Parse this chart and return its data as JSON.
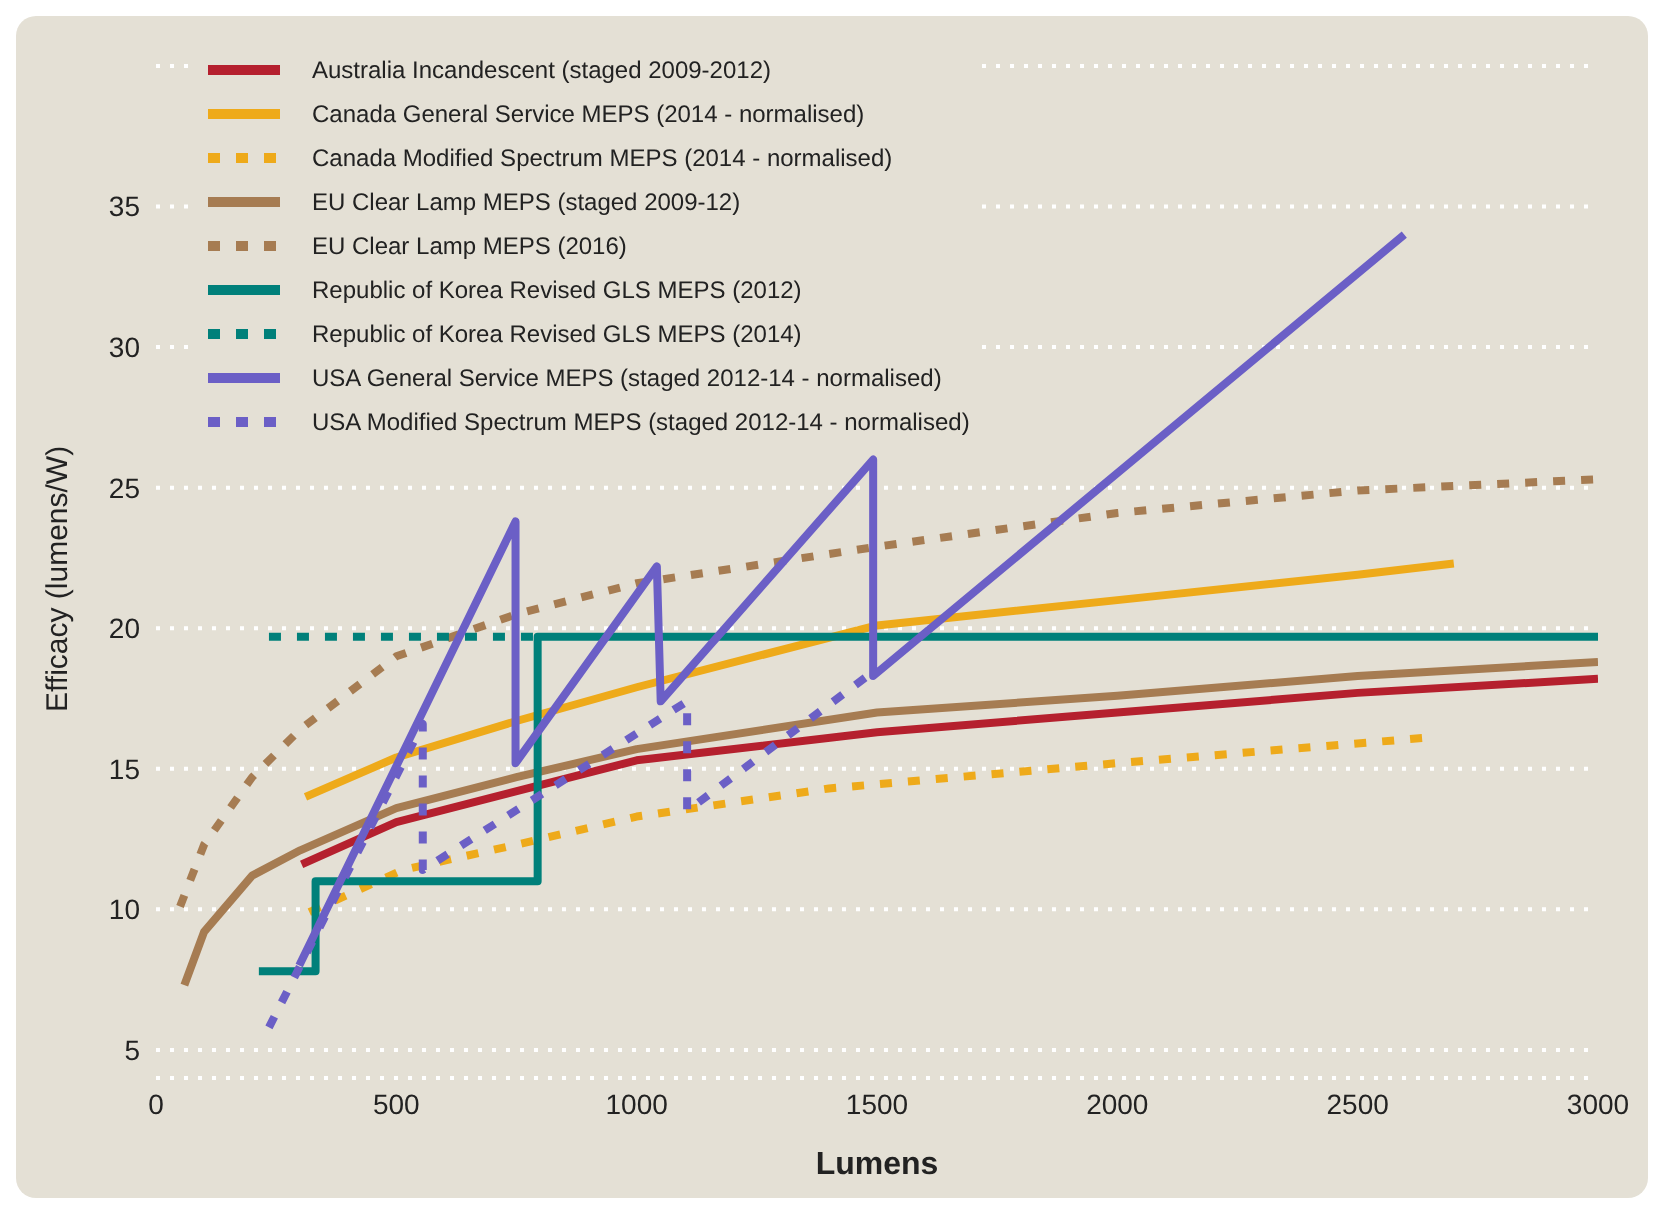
{
  "chart_data": {
    "type": "line",
    "xlabel": "Lumens",
    "ylabel": "Efficacy (lumens/W)",
    "xlim": [
      0,
      3000
    ],
    "xticks": [
      0,
      500,
      1000,
      1500,
      2000,
      2500,
      3000
    ],
    "ylim": [
      4,
      40
    ],
    "yticks": [
      5,
      10,
      15,
      20,
      25,
      30,
      35
    ],
    "grid": "y",
    "legend": "top left",
    "line_style": "solid",
    "series": [
      {
        "name": "Australia Incandescent (staged 2009-2012)",
        "color": "#b5202e",
        "x": [
          303,
          500,
          1000,
          1500,
          2000,
          2500,
          3000
        ],
        "values": [
          11.6,
          13.1,
          15.3,
          16.3,
          17.0,
          17.7,
          18.2
        ]
      },
      {
        "name": "Canada General Service MEPS (2014 - normalised)",
        "color": "#eeaa1a",
        "x": [
          311,
          500,
          750,
          1000,
          1500,
          2000,
          2500,
          2700
        ],
        "values": [
          14.0,
          15.4,
          16.7,
          17.9,
          20.1,
          21.0,
          21.9,
          22.3
        ]
      },
      {
        "name": "Canada Modified Spectrum MEPS (2014 - normalised)",
        "color": "#eeaa1a",
        "line_style": "dashed",
        "x": [
          319,
          513,
          750,
          1000,
          1400,
          2000,
          2640
        ],
        "values": [
          9.9,
          11.4,
          12.3,
          13.3,
          14.3,
          15.2,
          16.1
        ]
      },
      {
        "name": "EU Clear Lamp MEPS (staged 2009-12)",
        "color": "#a67c52",
        "x": [
          59,
          100,
          200,
          300,
          500,
          750,
          1000,
          1500,
          2000,
          2500,
          3000
        ],
        "values": [
          7.3,
          9.2,
          11.2,
          12.1,
          13.6,
          14.7,
          15.7,
          17.0,
          17.6,
          18.3,
          18.8
        ]
      },
      {
        "name": "EU Clear Lamp MEPS (2016)",
        "color": "#a67c52",
        "line_style": "dashed",
        "x": [
          50,
          100,
          200,
          300,
          500,
          750,
          1000,
          1500,
          2000,
          2500,
          3000
        ],
        "values": [
          10.1,
          12.3,
          14.7,
          16.4,
          19.0,
          20.5,
          21.6,
          22.9,
          24.1,
          24.9,
          25.3
        ]
      },
      {
        "name": "Republic of Korea Revised GLS MEPS (2012)",
        "color": "#00807a",
        "type": "step",
        "x": [
          214,
          332,
          794,
          3000
        ],
        "values": [
          7.8,
          11.0,
          19.7,
          19.7
        ]
      },
      {
        "name": "Republic of Korea Revised GLS MEPS (2014)",
        "color": "#00807a",
        "type": "step",
        "line_style": "dashed",
        "x": [
          235,
          794
        ],
        "values": [
          19.7,
          19.7
        ]
      },
      {
        "name": "USA General Service MEPS (staged 2012-14 - normalised)",
        "color": "#6b5fc6",
        "x": [
          298,
          748,
          748,
          1042,
          1050,
          1492,
          1492,
          2597
        ],
        "values": [
          8.0,
          23.8,
          15.2,
          22.2,
          17.4,
          26.0,
          18.3,
          34.0
        ]
      },
      {
        "name": "USA Modified Spectrum MEPS (staged 2012-14 - normalised)",
        "color": "#6b5fc6",
        "line_style": "dashed",
        "x": [
          235,
          555,
          555,
          1105,
          1105,
          1480
        ],
        "values": [
          5.8,
          16.6,
          11.4,
          17.4,
          13.5,
          18.3
        ]
      }
    ]
  }
}
